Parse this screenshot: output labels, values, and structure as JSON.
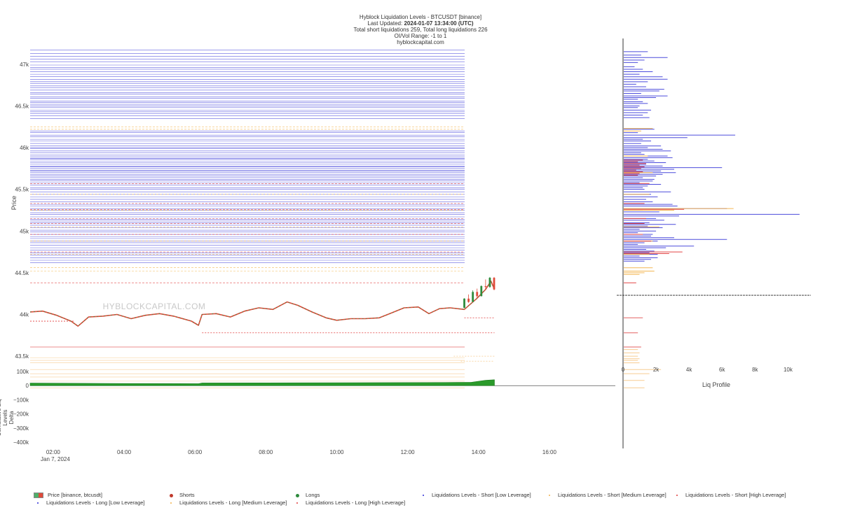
{
  "header": {
    "title": "Hyblock Liquidation Levels - BTCUSDT [binance]",
    "updated_label": "Last Updated:",
    "updated_value": "2024-01-07 13:34:00 (UTC)",
    "totals": "Total short liquidations 259, Total long liquidations 226",
    "range": "OI/Vol Range: -1 to 1",
    "site": "hyblockcapital.com"
  },
  "watermark": "HYBLOCKCAPITAL.COM",
  "colors": {
    "short_low": "#2b2bd6",
    "short_medium": "#f2b24a",
    "short_high": "#e03a3a",
    "long_low": "#6b6bd9",
    "long_medium": "#f7c98a",
    "long_high": "#e35a5a",
    "candle_up": "#2e8b3d",
    "candle_down": "#e04a3a",
    "cum_area": "#2a9a2a"
  },
  "chart_data": [
    {
      "type": "candlestick",
      "ylabel": "Price",
      "yticks": [
        "47k",
        "46.5k",
        "46k",
        "45.5k",
        "45k",
        "44.5k",
        "44k",
        "43.5k"
      ],
      "ytick_values": [
        47000,
        46500,
        46000,
        45500,
        45000,
        44500,
        44000,
        43500
      ],
      "ylim": [
        43350,
        47250
      ],
      "xticks": [
        "02:00",
        "04:00",
        "06:00",
        "08:00",
        "10:00",
        "12:00",
        "14:00",
        "16:00"
      ],
      "xtick_hours": [
        2,
        4,
        6,
        8,
        10,
        12,
        14,
        16
      ],
      "x_date_label": "Jan 7, 2024",
      "xlim_hours": [
        1.35,
        17.9
      ],
      "price_path": [
        [
          1.35,
          44030
        ],
        [
          1.7,
          44040
        ],
        [
          2.1,
          43990
        ],
        [
          2.5,
          43920
        ],
        [
          2.7,
          43860
        ],
        [
          3.0,
          43970
        ],
        [
          3.4,
          43980
        ],
        [
          3.8,
          44000
        ],
        [
          4.2,
          43950
        ],
        [
          4.6,
          43990
        ],
        [
          5.0,
          44010
        ],
        [
          5.4,
          43980
        ],
        [
          5.9,
          43920
        ],
        [
          6.1,
          43870
        ],
        [
          6.2,
          44000
        ],
        [
          6.6,
          44010
        ],
        [
          7.0,
          43970
        ],
        [
          7.4,
          44040
        ],
        [
          7.8,
          44080
        ],
        [
          8.2,
          44060
        ],
        [
          8.6,
          44150
        ],
        [
          8.9,
          44110
        ],
        [
          9.3,
          44030
        ],
        [
          9.7,
          43960
        ],
        [
          10.0,
          43930
        ],
        [
          10.4,
          43950
        ],
        [
          10.8,
          43950
        ],
        [
          11.2,
          43960
        ],
        [
          11.5,
          44010
        ],
        [
          11.9,
          44080
        ],
        [
          12.3,
          44090
        ],
        [
          12.6,
          44010
        ],
        [
          12.9,
          44070
        ],
        [
          13.2,
          44080
        ],
        [
          13.6,
          44060
        ],
        [
          13.95,
          44190
        ],
        [
          14.2,
          44300
        ],
        [
          14.35,
          44400
        ],
        [
          14.45,
          44300
        ]
      ],
      "candles": [
        [
          13.6,
          44080,
          44190,
          44195,
          44075
        ],
        [
          13.72,
          44190,
          44150,
          44240,
          44140
        ],
        [
          13.84,
          44150,
          44270,
          44290,
          44145
        ],
        [
          13.96,
          44270,
          44220,
          44310,
          44200
        ],
        [
          14.08,
          44220,
          44340,
          44350,
          44215
        ],
        [
          14.2,
          44340,
          44330,
          44420,
          44300
        ],
        [
          14.32,
          44330,
          44440,
          44450,
          44320
        ],
        [
          14.44,
          44440,
          44300,
          44450,
          44290
        ]
      ],
      "liq_levels": {
        "short_low": [
          47170,
          47130,
          47095,
          47060,
          47030,
          46990,
          46960,
          46940,
          46910,
          46880,
          46850,
          46820,
          46790,
          46770,
          46740,
          46720,
          46690,
          46660,
          46640,
          46610,
          46590,
          46560,
          46540,
          46520,
          46500,
          46480,
          46450,
          46430,
          46410,
          46380,
          46350,
          46200,
          46180,
          46150,
          46130,
          46100,
          46080,
          46050,
          46020,
          46000,
          45990,
          45960,
          45940,
          45910,
          45890,
          45870,
          45860,
          45840,
          45820,
          45800,
          45780,
          45770,
          45750,
          45730,
          45720,
          45700,
          45680,
          45660,
          45640,
          45620,
          45600,
          45580,
          45550,
          45520,
          45500,
          45470,
          45440,
          45410,
          45380,
          45350,
          45320,
          45300,
          45270,
          45250,
          45220,
          45200,
          45170,
          45140,
          45120,
          45100,
          45070,
          45040,
          45010,
          44990,
          44960,
          44930,
          44910,
          44880,
          44860,
          44830,
          44800,
          44770,
          44740,
          44710,
          44680,
          44650,
          44620
        ],
        "short_medium": [
          46250,
          46220,
          45440,
          45250,
          45050,
          44880,
          44720,
          44560,
          44520
        ],
        "short_high": [
          45570,
          45330,
          45260,
          45150,
          45090,
          44960,
          44750,
          44380
        ],
        "long_high": [
          43610
        ],
        "long_medium": [
          43480,
          43450,
          43420,
          43340,
          43290,
          43250,
          43200,
          43150,
          43120
        ]
      }
    },
    {
      "type": "area",
      "ylabel": "Cumulative Liq Levels Delta",
      "yticks": [
        "100k",
        "0",
        "−100k",
        "−200k",
        "−300k",
        "−400k"
      ],
      "ytick_values": [
        100000,
        0,
        -100000,
        -200000,
        -300000,
        -400000
      ],
      "ylim": [
        -440000,
        130000
      ],
      "series": [
        [
          1.35,
          18000
        ],
        [
          4.0,
          15000
        ],
        [
          6.1,
          14000
        ],
        [
          6.2,
          19000
        ],
        [
          9.0,
          20000
        ],
        [
          12.5,
          22000
        ],
        [
          13.8,
          24000
        ],
        [
          14.2,
          38000
        ],
        [
          14.45,
          42000
        ]
      ]
    },
    {
      "type": "bar",
      "orientation": "horizontal",
      "xlabel": "Liq Profile",
      "xticks": [
        "0",
        "2k",
        "4k",
        "6k",
        "8k",
        "10k"
      ],
      "xtick_values": [
        0,
        2000,
        4000,
        6000,
        8000,
        10000
      ],
      "xlim": [
        0,
        11300
      ],
      "reference_price": 44230,
      "bars": [
        [
          47150,
          1500,
          "s"
        ],
        [
          47110,
          1100,
          "s"
        ],
        [
          47080,
          2700,
          "s"
        ],
        [
          47050,
          1300,
          "s"
        ],
        [
          47020,
          900,
          "s"
        ],
        [
          46970,
          700,
          "s"
        ],
        [
          46940,
          1200,
          "s"
        ],
        [
          46910,
          1800,
          "s"
        ],
        [
          46880,
          1000,
          "s"
        ],
        [
          46850,
          2400,
          "s"
        ],
        [
          46820,
          2700,
          "s"
        ],
        [
          46790,
          1500,
          "s"
        ],
        [
          46760,
          800,
          "s"
        ],
        [
          46730,
          1400,
          "s"
        ],
        [
          46700,
          2500,
          "s"
        ],
        [
          46680,
          2200,
          "s"
        ],
        [
          46650,
          1100,
          "s"
        ],
        [
          46620,
          2700,
          "s"
        ],
        [
          46600,
          2000,
          "s"
        ],
        [
          46580,
          900,
          "s"
        ],
        [
          46550,
          1200,
          "s"
        ],
        [
          46530,
          1500,
          "s"
        ],
        [
          46500,
          1000,
          "s"
        ],
        [
          46480,
          900,
          "s"
        ],
        [
          46450,
          1700,
          "s"
        ],
        [
          46420,
          1500,
          "s"
        ],
        [
          46390,
          1200,
          "s"
        ],
        [
          46360,
          1600,
          "s"
        ],
        [
          46230,
          1800,
          "m"
        ],
        [
          46200,
          1100,
          "m"
        ],
        [
          46220,
          1900,
          "s"
        ],
        [
          46180,
          900,
          "s"
        ],
        [
          46150,
          6800,
          "s"
        ],
        [
          46120,
          3900,
          "s"
        ],
        [
          46100,
          1200,
          "s"
        ],
        [
          46080,
          1700,
          "s"
        ],
        [
          46050,
          1100,
          "s"
        ],
        [
          46020,
          2300,
          "s"
        ],
        [
          46000,
          1500,
          "s"
        ],
        [
          45980,
          2400,
          "s"
        ],
        [
          45960,
          2900,
          "s"
        ],
        [
          45940,
          1100,
          "s"
        ],
        [
          45920,
          1300,
          "s"
        ],
        [
          45900,
          2700,
          "s"
        ],
        [
          45880,
          3000,
          "s"
        ],
        [
          45860,
          1500,
          "s"
        ],
        [
          45840,
          1900,
          "s"
        ],
        [
          45820,
          2600,
          "s"
        ],
        [
          45800,
          1400,
          "s"
        ],
        [
          45780,
          2400,
          "s"
        ],
        [
          45760,
          6000,
          "s"
        ],
        [
          45740,
          3100,
          "s"
        ],
        [
          45720,
          2300,
          "s"
        ],
        [
          45700,
          3200,
          "s"
        ],
        [
          45680,
          2400,
          "s"
        ],
        [
          45660,
          2000,
          "s"
        ],
        [
          45640,
          1200,
          "s"
        ],
        [
          45620,
          1900,
          "s"
        ],
        [
          45600,
          1800,
          "s"
        ],
        [
          45580,
          1000,
          "s"
        ],
        [
          45560,
          2300,
          "s"
        ],
        [
          45540,
          1500,
          "s"
        ],
        [
          45520,
          1200,
          "s"
        ],
        [
          45500,
          1300,
          "s"
        ],
        [
          45470,
          2900,
          "s"
        ],
        [
          45440,
          1700,
          "s"
        ],
        [
          45410,
          2100,
          "s"
        ],
        [
          45380,
          1400,
          "s"
        ],
        [
          45350,
          1800,
          "s"
        ],
        [
          45320,
          3000,
          "s"
        ],
        [
          45300,
          3300,
          "s"
        ],
        [
          45270,
          6300,
          "s"
        ],
        [
          45250,
          1200,
          "s"
        ],
        [
          45230,
          2200,
          "s"
        ],
        [
          45200,
          10700,
          "s"
        ],
        [
          45180,
          3400,
          "s"
        ],
        [
          45150,
          2000,
          "s"
        ],
        [
          45130,
          2500,
          "s"
        ],
        [
          45100,
          1600,
          "s"
        ],
        [
          45080,
          3200,
          "s"
        ],
        [
          45060,
          1500,
          "s"
        ],
        [
          45040,
          2400,
          "s"
        ],
        [
          45020,
          1000,
          "s"
        ],
        [
          45000,
          2000,
          "s"
        ],
        [
          44980,
          900,
          "s"
        ],
        [
          44960,
          1800,
          "s"
        ],
        [
          44940,
          1700,
          "s"
        ],
        [
          44920,
          3100,
          "s"
        ],
        [
          44900,
          6300,
          "s"
        ],
        [
          44880,
          2100,
          "s"
        ],
        [
          44860,
          1300,
          "s"
        ],
        [
          44840,
          900,
          "s"
        ],
        [
          44820,
          4300,
          "s"
        ],
        [
          44800,
          2600,
          "s"
        ],
        [
          44780,
          1400,
          "s"
        ],
        [
          44760,
          1900,
          "s"
        ],
        [
          44740,
          1600,
          "s"
        ],
        [
          44720,
          2100,
          "s"
        ],
        [
          44700,
          1000,
          "s"
        ],
        [
          44680,
          2100,
          "s"
        ],
        [
          44660,
          1700,
          "s"
        ],
        [
          44640,
          1300,
          "s"
        ],
        [
          45900,
          1500,
          "m"
        ],
        [
          45700,
          1800,
          "m"
        ],
        [
          45440,
          1600,
          "m"
        ],
        [
          45270,
          6700,
          "m"
        ],
        [
          45250,
          3100,
          "m"
        ],
        [
          45050,
          2200,
          "m"
        ],
        [
          44880,
          1800,
          "m"
        ],
        [
          44720,
          1600,
          "m"
        ],
        [
          44560,
          1800,
          "m"
        ],
        [
          44520,
          1900,
          "m"
        ],
        [
          44500,
          1300,
          "m"
        ],
        [
          44480,
          1000,
          "m"
        ],
        [
          45850,
          1200,
          "h"
        ],
        [
          45830,
          900,
          "h"
        ],
        [
          45810,
          1400,
          "h"
        ],
        [
          45790,
          1000,
          "h"
        ],
        [
          45770,
          1300,
          "h"
        ],
        [
          45750,
          1100,
          "h"
        ],
        [
          45730,
          800,
          "h"
        ],
        [
          45710,
          1200,
          "h"
        ],
        [
          45690,
          1000,
          "h"
        ],
        [
          45670,
          900,
          "h"
        ],
        [
          45570,
          1600,
          "h"
        ],
        [
          45330,
          1300,
          "h"
        ],
        [
          45260,
          3700,
          "h"
        ],
        [
          45150,
          1400,
          "h"
        ],
        [
          45090,
          1300,
          "h"
        ],
        [
          44960,
          1200,
          "h"
        ],
        [
          44880,
          1700,
          "h"
        ],
        [
          44750,
          3600,
          "h"
        ],
        [
          44730,
          2800,
          "h"
        ],
        [
          44380,
          800,
          "h"
        ],
        [
          43960,
          1200,
          "lh"
        ],
        [
          43780,
          900,
          "lh"
        ],
        [
          43610,
          1100,
          "lh"
        ],
        [
          43580,
          900,
          "lm"
        ],
        [
          43540,
          1000,
          "lm"
        ],
        [
          43500,
          900,
          "lm"
        ],
        [
          43470,
          1000,
          "lm"
        ],
        [
          43450,
          900,
          "lm"
        ],
        [
          43420,
          1000,
          "lm"
        ],
        [
          43340,
          2300,
          "lm"
        ],
        [
          43290,
          1600,
          "lm"
        ],
        [
          43210,
          1300,
          "lm"
        ],
        [
          43120,
          1300,
          "lm"
        ]
      ]
    }
  ],
  "legend": [
    {
      "name": "Price [binance, btcusdt]",
      "sym": "candle"
    },
    {
      "name": "Shorts",
      "sym": "dot-red"
    },
    {
      "name": "Longs",
      "sym": "dot-green"
    },
    {
      "name": "Liquidations Levels - Short [Low Leverage]",
      "sym": "dot-blue"
    },
    {
      "name": "Liquidations Levels - Short [Medium Leverage]",
      "sym": "dot-orange"
    },
    {
      "name": "Liquidations Levels - Short [High Leverage]",
      "sym": "dot-redsmall"
    },
    {
      "name": "Liquidations Levels - Long [Low Leverage]",
      "sym": "dot-blue"
    },
    {
      "name": "Liquidations Levels - Long [Medium Leverage]",
      "sym": "dot-orange"
    },
    {
      "name": "Liquidations Levels - Long [High Leverage]",
      "sym": "dot-redsmall"
    }
  ]
}
